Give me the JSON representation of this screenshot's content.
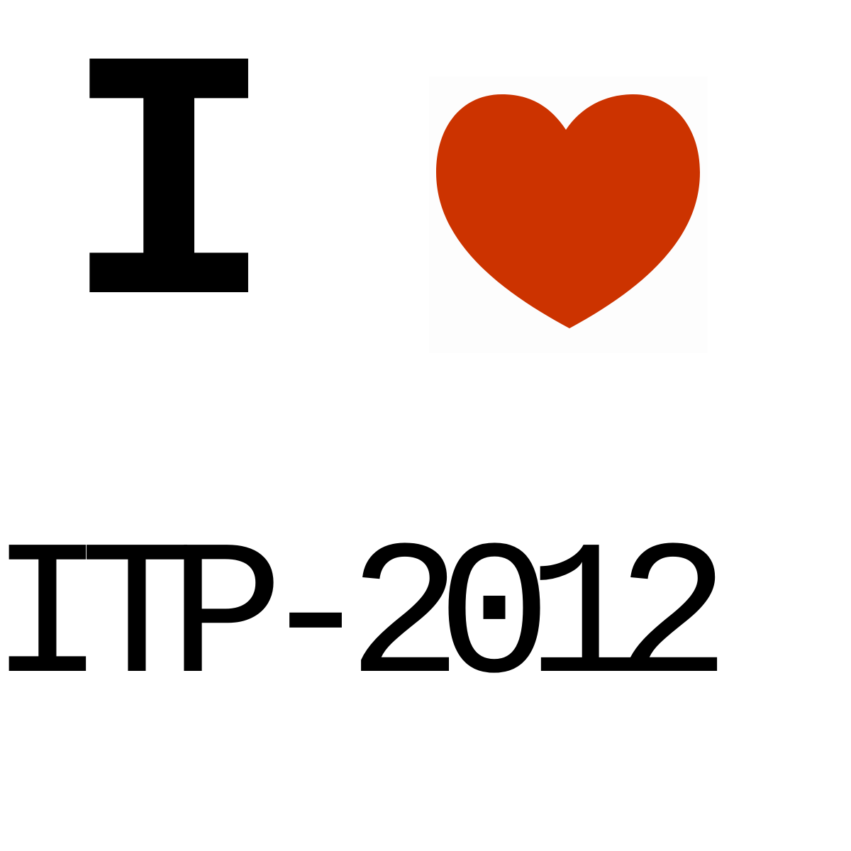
{
  "poster": {
    "top_word": "I",
    "bottom_line": "ITP-2012",
    "heart_icon": "heart-icon",
    "heart_color": "#cc3300",
    "text_color": "#000000",
    "background_color": "#ffffff"
  }
}
